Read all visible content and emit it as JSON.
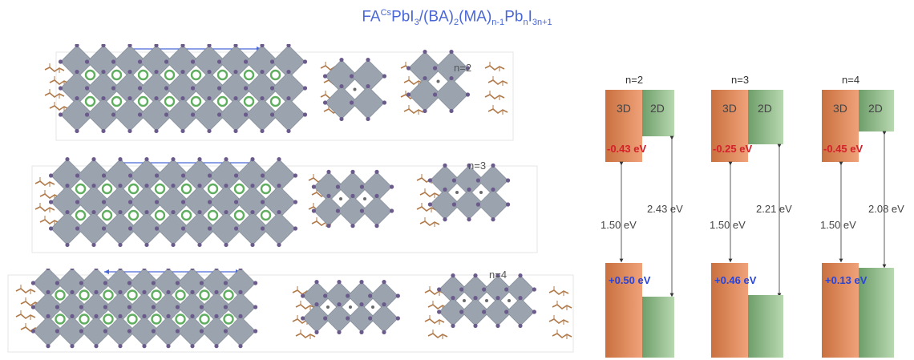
{
  "title": {
    "base": "FA",
    "sup": "Cs",
    "part1": "PbI",
    "sub1": "3",
    "part2": "/(BA)",
    "sub2": "2",
    "part3": "(MA)",
    "sub3": "n-1",
    "part4": "Pb",
    "sub4": "n",
    "part5": "I",
    "sub5": "3n+1"
  },
  "structures": [
    {
      "label": "n=2"
    },
    {
      "label": "n=3"
    },
    {
      "label": "n=4"
    }
  ],
  "band_alignment": [
    {
      "header": "n=2",
      "label_3d": "3D",
      "label_2d": "2D",
      "cb_offset": "-0.43 eV",
      "vb_offset": "+0.50 eV",
      "gap_3d": "1.50 eV",
      "gap_2d": "2.43 eV"
    },
    {
      "header": "n=3",
      "label_3d": "3D",
      "label_2d": "2D",
      "cb_offset": "-0.25 eV",
      "vb_offset": "+0.46 eV",
      "gap_3d": "1.50 eV",
      "gap_2d": "2.21 eV"
    },
    {
      "header": "n=4",
      "label_3d": "3D",
      "label_2d": "2D",
      "cb_offset": "-0.45 eV",
      "vb_offset": "+0.13 eV",
      "gap_3d": "1.50 eV",
      "gap_2d": "2.08 eV"
    }
  ],
  "colors": {
    "title": "#4a67d6",
    "octahedron": "#9aa3ae",
    "cation": "#5fae5f",
    "iodide": "#6b5a8c",
    "organic": "#b07a4a",
    "bar_3d": "#e8935a",
    "bar_2d": "#9cc594",
    "cb_text": "#d4202a",
    "vb_text": "#2a44d6"
  }
}
